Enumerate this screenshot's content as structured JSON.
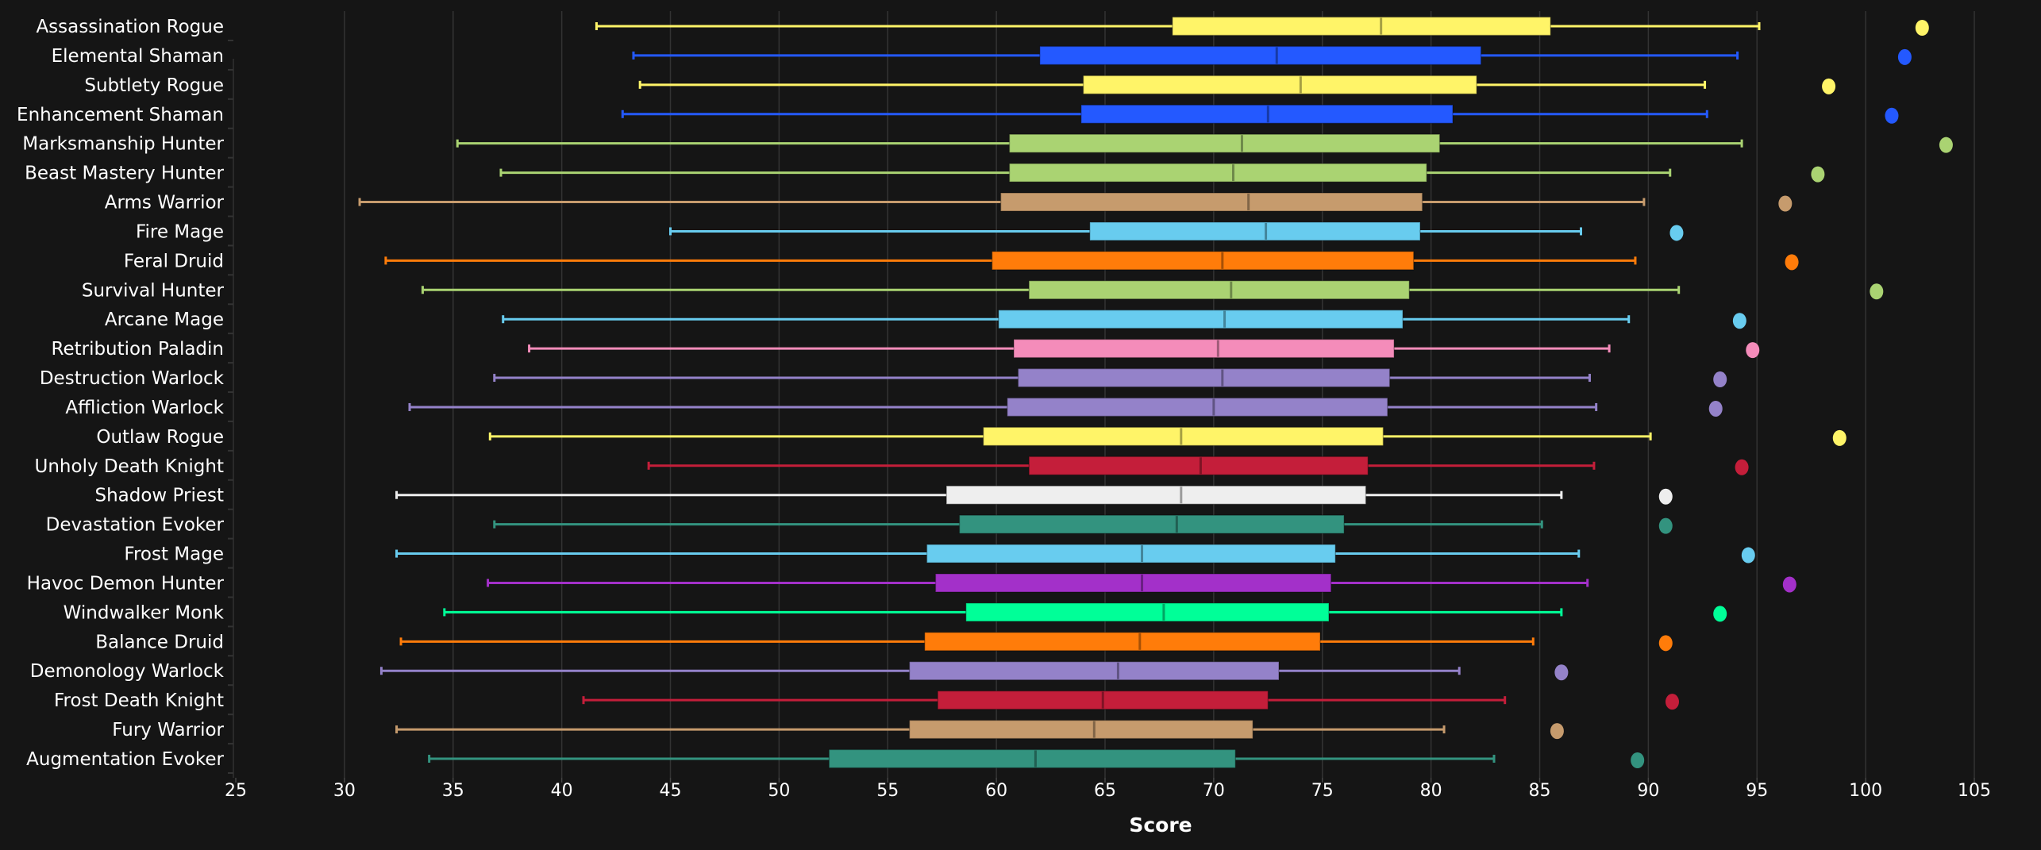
{
  "chart_data": {
    "type": "boxplot",
    "title": "",
    "xlabel": "Score",
    "ylabel": "",
    "xlim": [
      25,
      105.6
    ],
    "xticks": [
      25,
      30,
      35,
      40,
      45,
      50,
      55,
      60,
      65,
      70,
      75,
      80,
      85,
      90,
      95,
      100,
      105
    ],
    "grid": true,
    "series": [
      {
        "name": "Assassination Rogue",
        "color": "#fff468",
        "min": 41.6,
        "q1": 68.1,
        "median": 77.7,
        "q3": 85.5,
        "max": 95.1,
        "outlier": 102.6
      },
      {
        "name": "Elemental Shaman",
        "color": "#2459ff",
        "min": 43.3,
        "q1": 62.0,
        "median": 72.9,
        "q3": 82.3,
        "max": 94.1,
        "outlier": 101.8
      },
      {
        "name": "Subtlety Rogue",
        "color": "#fff468",
        "min": 43.6,
        "q1": 64.0,
        "median": 74.0,
        "q3": 82.1,
        "max": 92.6,
        "outlier": 98.3
      },
      {
        "name": "Enhancement Shaman",
        "color": "#2459ff",
        "min": 42.8,
        "q1": 63.9,
        "median": 72.5,
        "q3": 81.0,
        "max": 92.7,
        "outlier": 101.2
      },
      {
        "name": "Marksmanship Hunter",
        "color": "#aad372",
        "min": 35.2,
        "q1": 60.6,
        "median": 71.3,
        "q3": 80.4,
        "max": 94.3,
        "outlier": 103.7
      },
      {
        "name": "Beast Mastery Hunter",
        "color": "#aad372",
        "min": 37.2,
        "q1": 60.6,
        "median": 70.9,
        "q3": 79.8,
        "max": 91.0,
        "outlier": 97.8
      },
      {
        "name": "Arms Warrior",
        "color": "#c69b6d",
        "min": 30.7,
        "q1": 60.2,
        "median": 71.6,
        "q3": 79.6,
        "max": 89.8,
        "outlier": 96.3
      },
      {
        "name": "Fire Mage",
        "color": "#68ccef",
        "min": 45.0,
        "q1": 64.3,
        "median": 72.4,
        "q3": 79.5,
        "max": 86.9,
        "outlier": 91.3
      },
      {
        "name": "Feral Druid",
        "color": "#ff7c0a",
        "min": 31.9,
        "q1": 59.8,
        "median": 70.4,
        "q3": 79.2,
        "max": 89.4,
        "outlier": 96.6
      },
      {
        "name": "Survival Hunter",
        "color": "#aad372",
        "min": 33.6,
        "q1": 61.5,
        "median": 70.8,
        "q3": 79.0,
        "max": 91.4,
        "outlier": 100.5
      },
      {
        "name": "Arcane Mage",
        "color": "#68ccef",
        "min": 37.3,
        "q1": 60.1,
        "median": 70.5,
        "q3": 78.7,
        "max": 89.1,
        "outlier": 94.2
      },
      {
        "name": "Retribution Paladin",
        "color": "#f48cba",
        "min": 38.5,
        "q1": 60.8,
        "median": 70.2,
        "q3": 78.3,
        "max": 88.2,
        "outlier": 94.8
      },
      {
        "name": "Destruction Warlock",
        "color": "#9482c9",
        "min": 36.9,
        "q1": 61.0,
        "median": 70.4,
        "q3": 78.1,
        "max": 87.3,
        "outlier": 93.3
      },
      {
        "name": "Affliction Warlock",
        "color": "#9482c9",
        "min": 33.0,
        "q1": 60.5,
        "median": 70.0,
        "q3": 78.0,
        "max": 87.6,
        "outlier": 93.1
      },
      {
        "name": "Outlaw Rogue",
        "color": "#fff468",
        "min": 36.7,
        "q1": 59.4,
        "median": 68.5,
        "q3": 77.8,
        "max": 90.1,
        "outlier": 98.8
      },
      {
        "name": "Unholy Death Knight",
        "color": "#c41e3a",
        "min": 44.0,
        "q1": 61.5,
        "median": 69.4,
        "q3": 77.1,
        "max": 87.5,
        "outlier": 94.3
      },
      {
        "name": "Shadow Priest",
        "color": "#eeeeee",
        "min": 32.4,
        "q1": 57.7,
        "median": 68.5,
        "q3": 77.0,
        "max": 86.0,
        "outlier": 90.8
      },
      {
        "name": "Devastation Evoker",
        "color": "#33937f",
        "min": 36.9,
        "q1": 58.3,
        "median": 68.3,
        "q3": 76.0,
        "max": 85.1,
        "outlier": 90.8
      },
      {
        "name": "Frost Mage",
        "color": "#68ccef",
        "min": 32.4,
        "q1": 56.8,
        "median": 66.7,
        "q3": 75.6,
        "max": 86.8,
        "outlier": 94.6
      },
      {
        "name": "Havoc Demon Hunter",
        "color": "#a330c9",
        "min": 36.6,
        "q1": 57.2,
        "median": 66.7,
        "q3": 75.4,
        "max": 87.2,
        "outlier": 96.5
      },
      {
        "name": "Windwalker Monk",
        "color": "#00ff98",
        "min": 34.6,
        "q1": 58.6,
        "median": 67.7,
        "q3": 75.3,
        "max": 86.0,
        "outlier": 93.3
      },
      {
        "name": "Balance Druid",
        "color": "#ff7c0a",
        "min": 32.6,
        "q1": 56.7,
        "median": 66.6,
        "q3": 74.9,
        "max": 84.7,
        "outlier": 90.8
      },
      {
        "name": "Demonology Warlock",
        "color": "#9482c9",
        "min": 31.7,
        "q1": 56.0,
        "median": 65.6,
        "q3": 73.0,
        "max": 81.3,
        "outlier": 86.0
      },
      {
        "name": "Frost Death Knight",
        "color": "#c41e3a",
        "min": 41.0,
        "q1": 57.3,
        "median": 64.9,
        "q3": 72.5,
        "max": 83.4,
        "outlier": 91.1
      },
      {
        "name": "Fury Warrior",
        "color": "#c69b6d",
        "min": 32.4,
        "q1": 56.0,
        "median": 64.5,
        "q3": 71.8,
        "max": 80.6,
        "outlier": 85.8
      },
      {
        "name": "Augmentation Evoker",
        "color": "#33937f",
        "min": 33.9,
        "q1": 52.3,
        "median": 61.8,
        "q3": 71.0,
        "max": 82.9,
        "outlier": 89.5
      }
    ]
  }
}
